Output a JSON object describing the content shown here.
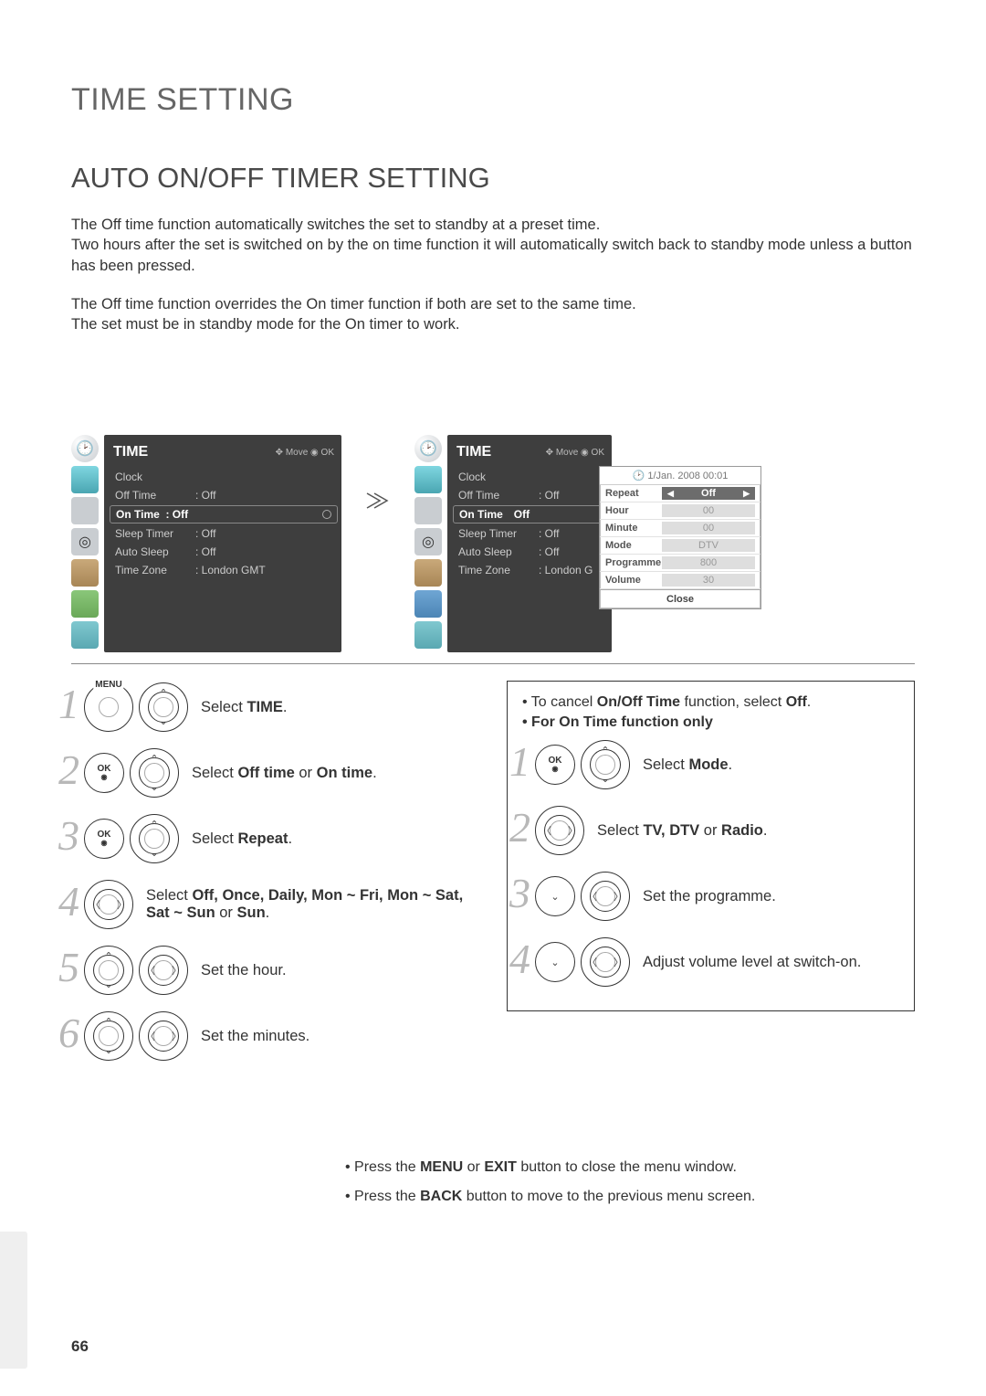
{
  "title": "TIME SETTING",
  "subtitle": "AUTO ON/OFF TIMER SETTING",
  "intro_p1": "The Off time function automatically switches the set to standby at a preset time.",
  "intro_p2": "Two hours after the set is switched on by the on time function it will automatically switch back to standby mode unless a button has been pressed.",
  "intro_p3": "The Off time function overrides the On timer function if both are set to the same time.",
  "intro_p4": "The set must be in standby mode for the On timer to work.",
  "osd": {
    "title": "TIME",
    "hint": "✥ Move   ◉ OK",
    "items": [
      {
        "label": "Clock",
        "value": ""
      },
      {
        "label": "Off Time",
        "value": ": Off"
      },
      {
        "label": "On Time",
        "value": ": Off",
        "highlight_left": true
      },
      {
        "label": "Sleep Timer",
        "value": ": Off"
      },
      {
        "label": "Auto Sleep",
        "value": ": Off"
      },
      {
        "label": "Time Zone",
        "value": ": London GMT"
      }
    ],
    "items_right_highlight_val": "Off",
    "items_right_timezone": ": London G"
  },
  "popup": {
    "date": "🕑 1/Jan. 2008 00:01",
    "rows": [
      {
        "k": "Repeat",
        "v": "Off",
        "sel": true
      },
      {
        "k": "Hour",
        "v": "00"
      },
      {
        "k": "Minute",
        "v": "00"
      },
      {
        "k": "Mode",
        "v": "DTV"
      },
      {
        "k": "Programme",
        "v": "800"
      },
      {
        "k": "Volume",
        "v": "30"
      }
    ],
    "close": "Close"
  },
  "steps_left": [
    {
      "n": "1",
      "btns": [
        "menu",
        "dpad-v"
      ],
      "text_pre": "Select ",
      "bold": "TIME",
      "text_post": "."
    },
    {
      "n": "2",
      "btns": [
        "ok",
        "dpad-v"
      ],
      "text_pre": "Select ",
      "bold": "Off time",
      "mid": " or ",
      "bold2": "On time",
      "text_post": "."
    },
    {
      "n": "3",
      "btns": [
        "ok",
        "dpad-v"
      ],
      "text_pre": "Select ",
      "bold": "Repeat",
      "text_post": "."
    },
    {
      "n": "4",
      "btns": [
        "dpad-h"
      ],
      "text_pre": "Select ",
      "bold": "Off, Once, Daily, Mon ~ Fri, Mon ~ Sat, Sat ~ Sun",
      "mid": " or ",
      "bold2": "Sun",
      "text_post": "."
    },
    {
      "n": "5",
      "btns": [
        "dpad-v",
        "dpad-h"
      ],
      "plain": "Set the hour."
    },
    {
      "n": "6",
      "btns": [
        "dpad-v",
        "dpad-h"
      ],
      "plain": "Set the minutes."
    }
  ],
  "right_notes": {
    "line1_pre": "• To cancel ",
    "line1_b": "On/Off Time",
    "line1_mid": " function, select ",
    "line1_b2": "Off",
    "line1_post": ".",
    "line2": "• For On Time function only"
  },
  "steps_right": [
    {
      "n": "1",
      "btns": [
        "ok",
        "dpad-v"
      ],
      "text_pre": "Select ",
      "bold": "Mode",
      "text_post": "."
    },
    {
      "n": "2",
      "btns": [
        "dpad-h"
      ],
      "text_pre": "Select ",
      "bold": "TV, DTV ",
      "mid": "or ",
      "bold2": "Radio",
      "text_post": "."
    },
    {
      "n": "3",
      "btns": [
        "dpad-v-sm",
        "dpad-h"
      ],
      "plain": "Set the programme."
    },
    {
      "n": "4",
      "btns": [
        "dpad-v-sm",
        "dpad-h"
      ],
      "plain": "Adjust volume level at switch-on."
    }
  ],
  "footer": {
    "l1_pre": "• Press the ",
    "l1_b": "MENU",
    "l1_mid": " or ",
    "l1_b2": "EXIT",
    "l1_post": " button to close the menu window.",
    "l2_pre": "• Press the ",
    "l2_b": "BACK",
    "l2_post": " button to move to the previous menu screen."
  },
  "page_number": "66"
}
